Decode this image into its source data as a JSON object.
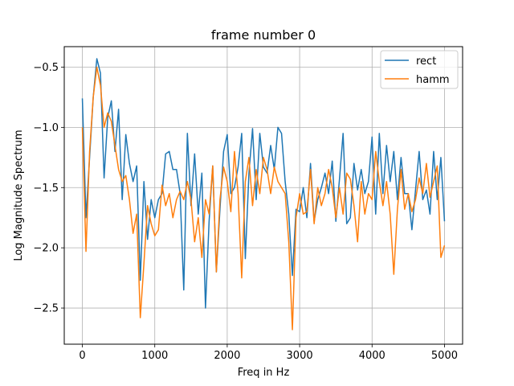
{
  "chart_data": {
    "type": "line",
    "title": "frame number 0",
    "xlabel": "Freq in Hz",
    "ylabel": "Log Magnitude Spectrum",
    "xlim": [
      -250,
      5250
    ],
    "ylim": [
      -2.8,
      -0.33
    ],
    "xticks": [
      0,
      1000,
      2000,
      3000,
      4000,
      5000
    ],
    "xtick_labels": [
      "0",
      "1000",
      "2000",
      "3000",
      "4000",
      "5000"
    ],
    "yticks": [
      -2.5,
      -2.0,
      -1.5,
      -1.0,
      -0.5
    ],
    "ytick_labels": [
      "−2.5",
      "−2.0",
      "−1.5",
      "−1.0",
      "−0.5"
    ],
    "grid": true,
    "legend_position": "upper right",
    "series": [
      {
        "name": "rect",
        "color": "#1f77b4",
        "x": [
          0,
          50,
          100,
          150,
          200,
          250,
          300,
          350,
          400,
          450,
          500,
          550,
          600,
          650,
          700,
          750,
          800,
          850,
          900,
          950,
          1000,
          1050,
          1100,
          1150,
          1200,
          1250,
          1300,
          1350,
          1400,
          1450,
          1500,
          1550,
          1600,
          1650,
          1700,
          1750,
          1800,
          1850,
          1900,
          1950,
          2000,
          2050,
          2100,
          2150,
          2200,
          2250,
          2300,
          2350,
          2400,
          2450,
          2500,
          2550,
          2600,
          2650,
          2700,
          2750,
          2800,
          2850,
          2900,
          2950,
          3000,
          3050,
          3100,
          3150,
          3200,
          3250,
          3300,
          3350,
          3400,
          3450,
          3500,
          3550,
          3600,
          3650,
          3700,
          3750,
          3800,
          3850,
          3900,
          3950,
          4000,
          4050,
          4100,
          4150,
          4200,
          4250,
          4300,
          4350,
          4400,
          4450,
          4500,
          4550,
          4600,
          4650,
          4700,
          4750,
          4800,
          4850,
          4900,
          4950,
          5000
        ],
        "values": [
          -0.76,
          -1.75,
          -1.25,
          -0.75,
          -0.43,
          -0.55,
          -1.42,
          -0.92,
          -0.78,
          -1.2,
          -0.85,
          -1.6,
          -1.06,
          -1.3,
          -1.45,
          -1.32,
          -2.27,
          -1.45,
          -1.93,
          -1.6,
          -1.75,
          -1.6,
          -1.55,
          -1.22,
          -1.2,
          -1.35,
          -1.35,
          -1.55,
          -2.35,
          -1.05,
          -1.65,
          -1.22,
          -1.72,
          -1.38,
          -2.5,
          -1.78,
          -1.32,
          -2.2,
          -1.68,
          -1.2,
          -1.06,
          -1.55,
          -1.5,
          -1.33,
          -1.05,
          -2.09,
          -1.38,
          -1.01,
          -1.6,
          -1.05,
          -1.33,
          -1.38,
          -1.15,
          -1.35,
          -1.0,
          -1.05,
          -1.45,
          -1.72,
          -2.23,
          -1.68,
          -1.7,
          -1.5,
          -1.75,
          -1.3,
          -1.78,
          -1.6,
          -1.5,
          -1.38,
          -1.55,
          -1.28,
          -1.78,
          -1.43,
          -1.05,
          -1.8,
          -1.75,
          -1.3,
          -1.52,
          -1.35,
          -1.55,
          -1.45,
          -1.08,
          -1.72,
          -1.05,
          -1.55,
          -1.15,
          -1.45,
          -1.2,
          -1.6,
          -1.25,
          -1.55,
          -1.55,
          -1.85,
          -1.52,
          -1.2,
          -1.6,
          -1.52,
          -1.72,
          -1.2,
          -1.6,
          -1.25,
          -1.78
        ]
      },
      {
        "name": "hamm",
        "color": "#ff7f0e",
        "x": [
          0,
          50,
          100,
          150,
          200,
          250,
          300,
          350,
          400,
          450,
          500,
          550,
          600,
          650,
          700,
          750,
          800,
          850,
          900,
          950,
          1000,
          1050,
          1100,
          1150,
          1200,
          1250,
          1300,
          1350,
          1400,
          1450,
          1500,
          1550,
          1600,
          1650,
          1700,
          1750,
          1800,
          1850,
          1900,
          1950,
          2000,
          2050,
          2100,
          2150,
          2200,
          2250,
          2300,
          2350,
          2400,
          2450,
          2500,
          2550,
          2600,
          2650,
          2700,
          2750,
          2800,
          2850,
          2900,
          2950,
          3000,
          3050,
          3100,
          3150,
          3200,
          3250,
          3300,
          3350,
          3400,
          3450,
          3500,
          3550,
          3600,
          3650,
          3700,
          3750,
          3800,
          3850,
          3900,
          3950,
          4000,
          4050,
          4100,
          4150,
          4200,
          4250,
          4300,
          4350,
          4400,
          4450,
          4500,
          4550,
          4600,
          4650,
          4700,
          4750,
          4800,
          4850,
          4900,
          4950,
          5000
        ],
        "values": [
          -1.0,
          -2.03,
          -1.2,
          -0.75,
          -0.5,
          -0.65,
          -1.0,
          -0.88,
          -0.95,
          -1.15,
          -1.35,
          -1.45,
          -1.4,
          -1.6,
          -1.88,
          -1.72,
          -2.58,
          -2.13,
          -1.65,
          -1.8,
          -1.9,
          -1.85,
          -1.48,
          -1.65,
          -1.55,
          -1.75,
          -1.6,
          -1.53,
          -1.6,
          -1.45,
          -1.6,
          -1.95,
          -1.75,
          -2.08,
          -1.6,
          -1.72,
          -1.32,
          -2.2,
          -1.6,
          -1.33,
          -1.45,
          -1.7,
          -1.2,
          -1.55,
          -2.25,
          -1.45,
          -1.25,
          -1.65,
          -1.35,
          -1.55,
          -1.25,
          -1.35,
          -1.55,
          -1.33,
          -1.45,
          -1.5,
          -1.55,
          -1.95,
          -2.68,
          -1.75,
          -1.55,
          -1.72,
          -1.7,
          -1.35,
          -1.8,
          -1.5,
          -1.65,
          -1.55,
          -1.35,
          -1.5,
          -1.75,
          -1.5,
          -1.72,
          -1.38,
          -1.43,
          -1.65,
          -1.95,
          -1.45,
          -1.72,
          -1.55,
          -1.6,
          -1.2,
          -1.45,
          -1.65,
          -1.45,
          -1.72,
          -2.22,
          -1.68,
          -1.35,
          -1.68,
          -1.55,
          -1.7,
          -1.6,
          -1.42,
          -1.55,
          -1.3,
          -1.58,
          -1.45,
          -1.32,
          -2.08,
          -1.98
        ]
      }
    ]
  }
}
